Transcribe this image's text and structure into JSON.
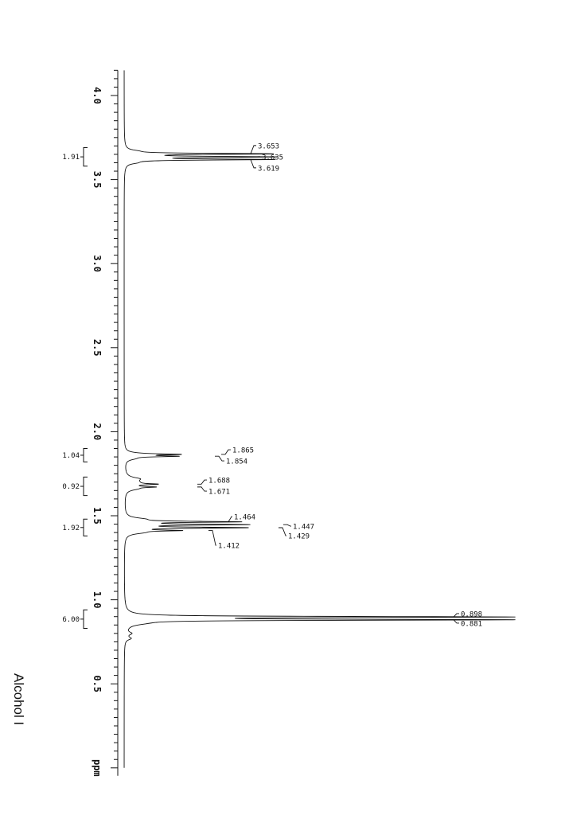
{
  "caption": "Alcohol I",
  "axis_unit": "ppm",
  "chart_data": {
    "type": "line",
    "title": "",
    "xlabel": "ppm",
    "ylabel": "",
    "x_range": [
      0.0,
      4.15
    ],
    "orientation": "rotated-90",
    "grid": false,
    "ticks": [
      "4.0",
      "3.5",
      "3.0",
      "2.5",
      "2.0",
      "1.5",
      "1.0",
      "0.5"
    ],
    "tick_values": [
      4.0,
      3.5,
      3.0,
      2.5,
      2.0,
      1.5,
      1.0,
      0.5
    ],
    "peaks": [
      {
        "ppm": 3.653,
        "intensity": 0.37
      },
      {
        "ppm": 3.635,
        "intensity": 0.37
      },
      {
        "ppm": 3.619,
        "intensity": 0.37
      },
      {
        "ppm": 1.865,
        "intensity": 0.12
      },
      {
        "ppm": 1.854,
        "intensity": 0.12
      },
      {
        "ppm": 1.688,
        "intensity": 0.06
      },
      {
        "ppm": 1.671,
        "intensity": 0.06
      },
      {
        "ppm": 1.464,
        "intensity": 0.28
      },
      {
        "ppm": 1.447,
        "intensity": 0.3
      },
      {
        "ppm": 1.429,
        "intensity": 0.3
      },
      {
        "ppm": 1.412,
        "intensity": 0.12
      },
      {
        "ppm": 0.898,
        "intensity": 0.98
      },
      {
        "ppm": 0.881,
        "intensity": 0.98
      }
    ],
    "peak_labels": [
      {
        "text": "3.653",
        "ppm": 3.653
      },
      {
        "text": "3.635",
        "ppm": 3.635
      },
      {
        "text": "3.619",
        "ppm": 3.619
      },
      {
        "text": "1.865",
        "ppm": 1.865
      },
      {
        "text": "1.854",
        "ppm": 1.854
      },
      {
        "text": "1.688",
        "ppm": 1.688
      },
      {
        "text": "1.671",
        "ppm": 1.671
      },
      {
        "text": "1.464",
        "ppm": 1.464
      },
      {
        "text": "1.447",
        "ppm": 1.447
      },
      {
        "text": "1.429",
        "ppm": 1.429
      },
      {
        "text": "1.412",
        "ppm": 1.412
      },
      {
        "text": "0.898",
        "ppm": 0.898
      },
      {
        "text": "0.881",
        "ppm": 0.881
      }
    ],
    "integrals": [
      {
        "text": "1.91",
        "from": 3.69,
        "to": 3.58
      },
      {
        "text": "1.04",
        "from": 1.9,
        "to": 1.82
      },
      {
        "text": "0.92",
        "from": 1.73,
        "to": 1.62
      },
      {
        "text": "1.92",
        "from": 1.48,
        "to": 1.38
      },
      {
        "text": "6.00",
        "from": 0.94,
        "to": 0.83
      }
    ]
  }
}
